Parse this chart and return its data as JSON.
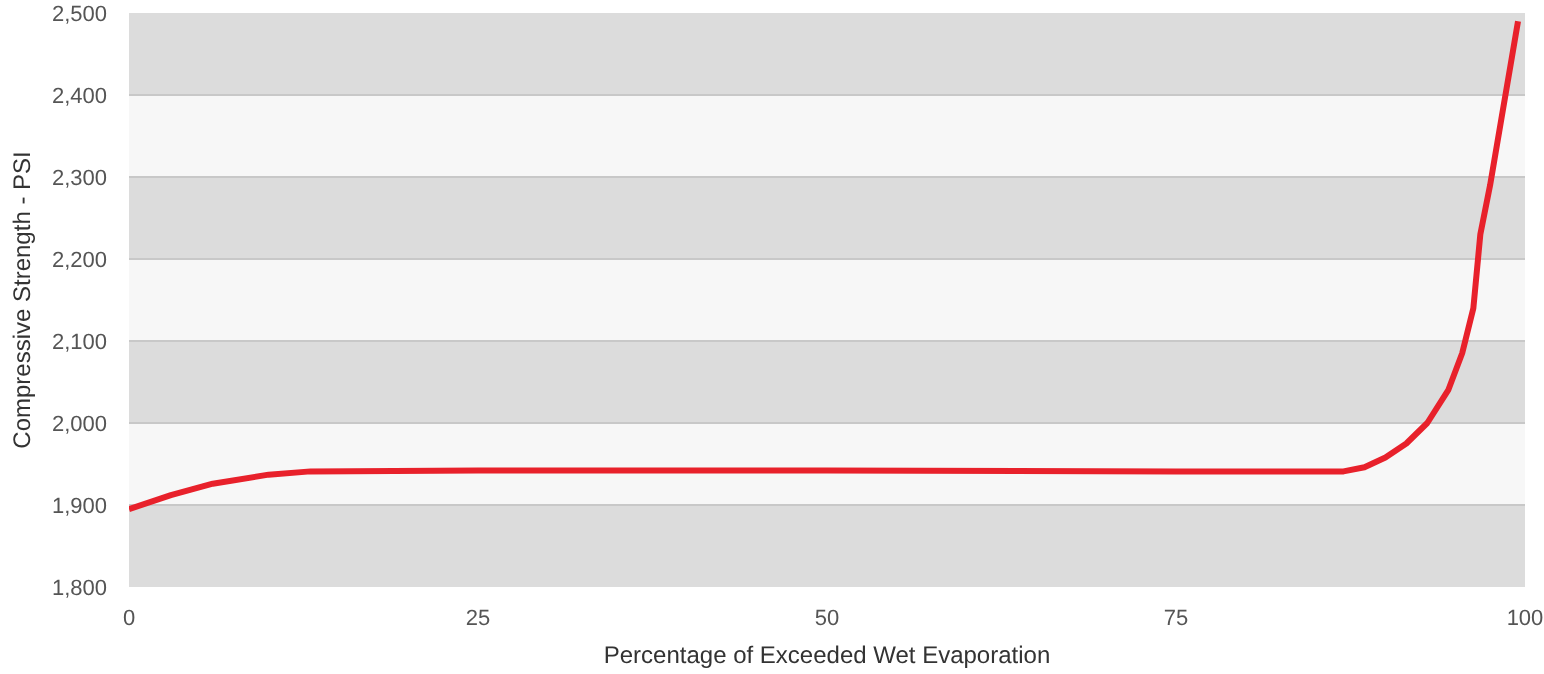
{
  "chart_data": {
    "type": "line",
    "xlabel": "Percentage of Exceeded Wet Evaporation",
    "ylabel": "Compressive Strength - PSI",
    "x": [
      0,
      3,
      6,
      10,
      13,
      25,
      50,
      75,
      87,
      88.5,
      90,
      91.5,
      93,
      94.5,
      95.5,
      96.3,
      96.8,
      97.5,
      98.3,
      99,
      99.5
    ],
    "series": [
      {
        "color": "#e8212b",
        "values": [
          1895,
          1912,
          1926,
          1937,
          1941,
          1942,
          1942,
          1941,
          1941,
          1946,
          1958,
          1975,
          2000,
          2040,
          2085,
          2140,
          2230,
          2290,
          2370,
          2440,
          2490
        ]
      }
    ],
    "xlim": [
      0,
      100
    ],
    "xticks": [
      0,
      25,
      50,
      75,
      100
    ],
    "ylim": [
      1800,
      2500
    ],
    "yticks": [
      {
        "value": 1800,
        "label": "1,800"
      },
      {
        "value": 1900,
        "label": "1,900"
      },
      {
        "value": 2000,
        "label": "2,000"
      },
      {
        "value": 2100,
        "label": "2,100"
      },
      {
        "value": 2200,
        "label": "2,200"
      },
      {
        "value": 2300,
        "label": "2,300"
      },
      {
        "value": 2400,
        "label": "2,400"
      },
      {
        "value": 2500,
        "label": "2,500"
      }
    ],
    "grid": "y"
  }
}
